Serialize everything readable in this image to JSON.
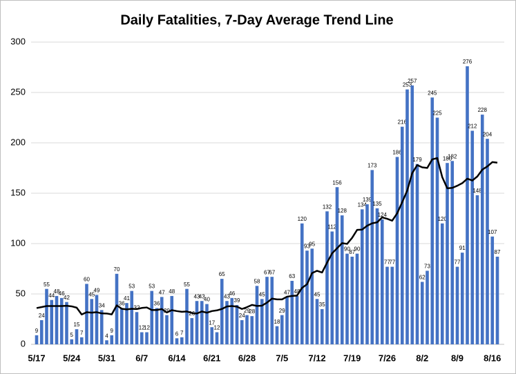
{
  "chart_data": {
    "type": "bar",
    "title": "Daily Fatalities, 7-Day Average Trend Line",
    "categories": [
      "5/17",
      null,
      null,
      null,
      null,
      null,
      null,
      "5/24",
      null,
      null,
      null,
      null,
      null,
      null,
      "5/31",
      null,
      null,
      null,
      null,
      null,
      null,
      "6/7",
      null,
      null,
      null,
      null,
      null,
      null,
      "6/14",
      null,
      null,
      null,
      null,
      null,
      null,
      "6/21",
      null,
      null,
      null,
      null,
      null,
      null,
      "6/28",
      null,
      null,
      null,
      null,
      null,
      null,
      "7/5",
      null,
      null,
      null,
      null,
      null,
      null,
      "7/12",
      null,
      null,
      null,
      null,
      null,
      null,
      "7/19",
      null,
      null,
      null,
      null,
      null,
      null,
      "7/26",
      null,
      null,
      null,
      null,
      null,
      null,
      "8/2",
      null,
      null,
      null,
      null,
      null,
      null,
      "8/9",
      null,
      null,
      null,
      null,
      null,
      null,
      "8/16",
      null
    ],
    "series": [
      {
        "type": "bar",
        "color": "#4472c4",
        "values": [
          9,
          24,
          55,
          44,
          48,
          46,
          42,
          5,
          15,
          7,
          60,
          45,
          49,
          34,
          4,
          9,
          70,
          36,
          41,
          53,
          32,
          12,
          12,
          53,
          36,
          47,
          29,
          48,
          6,
          7,
          55,
          26,
          43,
          43,
          40,
          17,
          12,
          65,
          43,
          46,
          39,
          24,
          29,
          28,
          58,
          45,
          67,
          67,
          18,
          29,
          47,
          63,
          48,
          120,
          93,
          95,
          45,
          35,
          132,
          112,
          156,
          128,
          90,
          87,
          90,
          134,
          139,
          173,
          135,
          124,
          77,
          77,
          186,
          216,
          253,
          257,
          179,
          62,
          73,
          245,
          225,
          120,
          180,
          182,
          77,
          91,
          276,
          212,
          148,
          228,
          204,
          107,
          87
        ]
      },
      {
        "type": "line",
        "color": "#000000",
        "values": [
          36,
          37,
          38,
          38,
          38,
          38,
          38.3,
          37.7,
          36.4,
          29.6,
          31.9,
          31.4,
          31.9,
          30.7,
          30.6,
          29.7,
          38.7,
          35.3,
          34.7,
          35.3,
          35,
          36.1,
          36.6,
          34.1,
          34.1,
          35,
          31.6,
          33.9,
          33,
          32.3,
          32.6,
          31.1,
          30.6,
          32.6,
          31.4,
          33,
          33.7,
          35.1,
          37.6,
          38,
          37.4,
          35.1,
          36.9,
          39.1,
          38.1,
          38.4,
          41.4,
          45.4,
          44.6,
          44.6,
          47.3,
          48,
          48.4,
          56,
          59.7,
          70.7,
          73,
          71.3,
          81.1,
          90.3,
          95.4,
          100.4,
          99.7,
          105.7,
          113.6,
          113.9,
          117.7,
          120.1,
          121.1,
          126,
          124.6,
          122.7,
          130.1,
          141.1,
          152.6,
          170,
          177.9,
          175.7,
          175.1,
          183.6,
          184.9,
          165.9,
          154.9,
          155.3,
          157.4,
          160,
          164.4,
          162.6,
          166.6,
          173.4,
          176.6,
          180.9,
          180.3
        ]
      }
    ],
    "ylim": [
      0,
      300
    ],
    "yticks": [
      0,
      50,
      100,
      150,
      200,
      250,
      300
    ],
    "grid": true
  }
}
